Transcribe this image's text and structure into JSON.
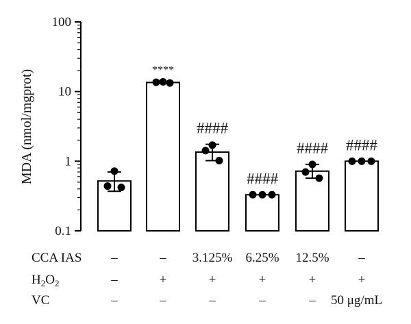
{
  "chart_data": {
    "type": "bar",
    "title": "",
    "xlabel": "",
    "ylabel": "MDA (nmol/mgprot)",
    "yscale": "log",
    "ylim": [
      0.1,
      100
    ],
    "yticks": [
      {
        "value": 0.1,
        "label": "0.1"
      },
      {
        "value": 1,
        "label": "1"
      },
      {
        "value": 10,
        "label": "10"
      },
      {
        "value": 100,
        "label": "100"
      }
    ],
    "grid": false,
    "legend": "none",
    "bar_fill": "#ffffff",
    "bar_edge": "#000000",
    "point_color": "#000000",
    "groups": [
      {
        "mean": 0.52,
        "err_low": 0.37,
        "err_high": 0.7,
        "points": [
          0.72,
          0.44,
          0.42
        ],
        "annotation": ""
      },
      {
        "mean": 13.5,
        "err_low": 13.1,
        "err_high": 13.9,
        "points": [
          13.8,
          13.6,
          13.3
        ],
        "annotation": "****"
      },
      {
        "mean": 1.35,
        "err_low": 1.02,
        "err_high": 1.75,
        "points": [
          1.7,
          1.42,
          1.02
        ],
        "annotation": "####"
      },
      {
        "mean": 0.33,
        "err_low": 0.33,
        "err_high": 0.33,
        "points": [
          0.33,
          0.33,
          0.33
        ],
        "annotation": "####"
      },
      {
        "mean": 0.72,
        "err_low": 0.57,
        "err_high": 0.9,
        "points": [
          0.9,
          0.7,
          0.57
        ],
        "annotation": "####"
      },
      {
        "mean": 1.0,
        "err_low": 1.0,
        "err_high": 1.0,
        "points": [
          1.0,
          1.0,
          1.0
        ],
        "annotation": "####"
      }
    ]
  },
  "conditions": {
    "cca": {
      "label": "CCA IAS",
      "values": [
        "–",
        "–",
        "3.125%",
        "6.25%",
        "12.5%",
        "–"
      ]
    },
    "h2o2": {
      "label_main": "H",
      "label_sub1": "2",
      "label_mid": "O",
      "label_sub2": "2",
      "values": [
        "–",
        "+",
        "+",
        "+",
        "+",
        "+"
      ]
    },
    "vc": {
      "label": "VC",
      "values": [
        "–",
        "–",
        "–",
        "–",
        "–",
        "50 μg/mL"
      ]
    }
  }
}
